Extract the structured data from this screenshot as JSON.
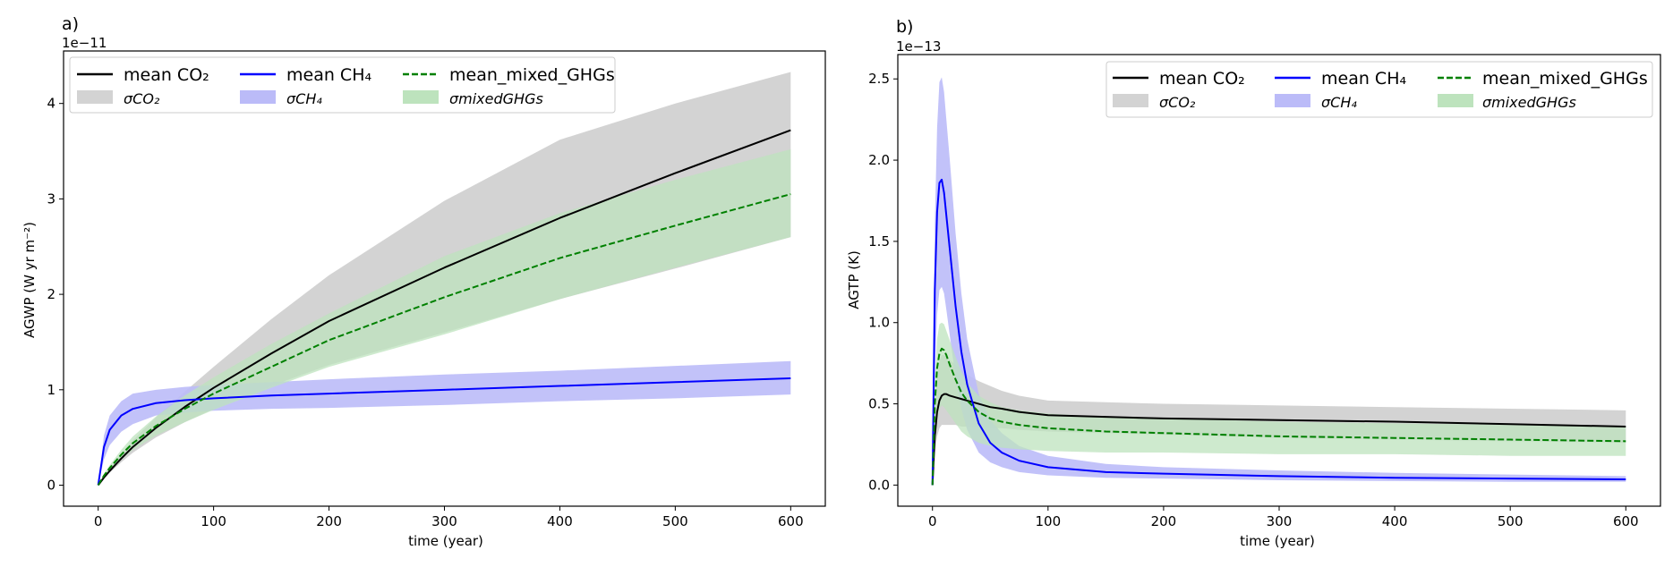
{
  "colors": {
    "co2": "#000000",
    "co2_band": "#d3d3d3",
    "ch4": "#0000ff",
    "ch4_band": "#bbbbf8",
    "mixed": "#008000",
    "mixed_band": "#bde3bd",
    "axes": "#000000"
  },
  "chart_data": [
    {
      "panel_label": "a)",
      "type": "line",
      "ylabel": "AGWP (W yr m⁻²)",
      "xlabel": "time (year)",
      "offset_text": "1e−11",
      "xlim": [
        -30,
        630
      ],
      "ylim": [
        -0.22,
        4.55
      ],
      "x_ticks": [
        0,
        100,
        200,
        300,
        400,
        500,
        600
      ],
      "y_ticks": [
        0,
        1,
        2,
        3,
        4
      ],
      "x_tick_labels": [
        "0",
        "100",
        "200",
        "300",
        "400",
        "500",
        "600"
      ],
      "y_tick_labels": [
        "0",
        "1",
        "2",
        "3",
        "4"
      ],
      "legend_position": "top-left",
      "legend": [
        [
          "mean CO₂",
          "mean CH₄",
          "mean_mixed_GHGs"
        ],
        [
          "σCO₂",
          "σCH₄",
          "σmixedGHGs"
        ]
      ],
      "x": [
        0,
        5,
        10,
        20,
        30,
        50,
        75,
        100,
        150,
        200,
        300,
        400,
        500,
        600
      ],
      "series": [
        {
          "name": "mean CO₂",
          "key": "co2",
          "mean": [
            0,
            0.08,
            0.15,
            0.28,
            0.4,
            0.6,
            0.82,
            1.02,
            1.38,
            1.72,
            2.28,
            2.8,
            3.27,
            3.72
          ],
          "lower": [
            0,
            0.07,
            0.13,
            0.24,
            0.34,
            0.5,
            0.66,
            0.8,
            1.04,
            1.26,
            1.6,
            1.95,
            2.27,
            2.6
          ],
          "upper": [
            0,
            0.09,
            0.17,
            0.33,
            0.47,
            0.71,
            0.98,
            1.24,
            1.74,
            2.2,
            2.98,
            3.62,
            4.0,
            4.33
          ]
        },
        {
          "name": "mean CH₄",
          "key": "ch4",
          "mean": [
            0,
            0.4,
            0.58,
            0.73,
            0.8,
            0.86,
            0.89,
            0.91,
            0.94,
            0.96,
            1.0,
            1.04,
            1.08,
            1.12
          ],
          "lower": [
            0,
            0.27,
            0.42,
            0.56,
            0.64,
            0.73,
            0.76,
            0.78,
            0.8,
            0.81,
            0.84,
            0.88,
            0.91,
            0.95
          ],
          "upper": [
            0,
            0.52,
            0.73,
            0.88,
            0.96,
            1.0,
            1.03,
            1.05,
            1.08,
            1.11,
            1.16,
            1.2,
            1.25,
            1.3
          ]
        },
        {
          "name": "mean_mixed_GHGs",
          "key": "mixed",
          "mean": [
            0,
            0.1,
            0.18,
            0.32,
            0.44,
            0.62,
            0.8,
            0.96,
            1.24,
            1.52,
            1.97,
            2.38,
            2.72,
            3.05
          ],
          "lower": [
            0,
            0.08,
            0.15,
            0.27,
            0.37,
            0.52,
            0.66,
            0.79,
            1.02,
            1.24,
            1.58,
            1.95,
            2.28,
            2.6
          ],
          "upper": [
            0,
            0.12,
            0.21,
            0.37,
            0.51,
            0.72,
            0.94,
            1.13,
            1.48,
            1.8,
            2.4,
            2.85,
            3.2,
            3.52
          ]
        }
      ]
    },
    {
      "panel_label": "b)",
      "type": "line",
      "ylabel": "AGTP (K)",
      "xlabel": "time (year)",
      "offset_text": "1e−13",
      "xlim": [
        -30,
        630
      ],
      "ylim": [
        -0.13,
        2.65
      ],
      "x_ticks": [
        0,
        100,
        200,
        300,
        400,
        500,
        600
      ],
      "y_ticks": [
        0.0,
        0.5,
        1.0,
        1.5,
        2.0,
        2.5
      ],
      "x_tick_labels": [
        "0",
        "100",
        "200",
        "300",
        "400",
        "500",
        "600"
      ],
      "y_tick_labels": [
        "0.0",
        "0.5",
        "1.0",
        "1.5",
        "2.0",
        "2.5"
      ],
      "legend_position": "top-right",
      "legend": [
        [
          "mean CO₂",
          "mean CH₄",
          "mean_mixed_GHGs"
        ],
        [
          "σCO₂",
          "σCH₄",
          "σmixedGHGs"
        ]
      ],
      "x": [
        0,
        2,
        4,
        6,
        8,
        10,
        12,
        15,
        20,
        25,
        30,
        40,
        50,
        60,
        75,
        100,
        150,
        200,
        300,
        400,
        500,
        600
      ],
      "series": [
        {
          "name": "mean CO₂",
          "key": "co2",
          "mean": [
            0,
            0.3,
            0.45,
            0.52,
            0.55,
            0.56,
            0.56,
            0.55,
            0.54,
            0.53,
            0.52,
            0.5,
            0.48,
            0.47,
            0.45,
            0.43,
            0.42,
            0.41,
            0.4,
            0.39,
            0.375,
            0.36
          ],
          "lower": [
            0,
            0.2,
            0.3,
            0.35,
            0.37,
            0.37,
            0.37,
            0.37,
            0.37,
            0.36,
            0.36,
            0.36,
            0.35,
            0.35,
            0.34,
            0.33,
            0.32,
            0.31,
            0.29,
            0.28,
            0.27,
            0.26
          ],
          "upper": [
            0,
            0.45,
            0.65,
            0.76,
            0.8,
            0.8,
            0.79,
            0.77,
            0.74,
            0.71,
            0.68,
            0.64,
            0.61,
            0.58,
            0.55,
            0.52,
            0.51,
            0.5,
            0.49,
            0.48,
            0.47,
            0.46
          ]
        },
        {
          "name": "mean CH₄",
          "key": "ch4",
          "mean": [
            0,
            1.2,
            1.68,
            1.86,
            1.88,
            1.8,
            1.66,
            1.45,
            1.1,
            0.82,
            0.62,
            0.38,
            0.26,
            0.2,
            0.15,
            0.11,
            0.08,
            0.07,
            0.055,
            0.045,
            0.04,
            0.035
          ],
          "lower": [
            0,
            0.7,
            1.05,
            1.2,
            1.22,
            1.18,
            1.08,
            0.92,
            0.66,
            0.47,
            0.34,
            0.2,
            0.14,
            0.11,
            0.08,
            0.06,
            0.045,
            0.04,
            0.03,
            0.025,
            0.02,
            0.02
          ],
          "upper": [
            0,
            1.6,
            2.2,
            2.48,
            2.51,
            2.42,
            2.25,
            2.0,
            1.55,
            1.18,
            0.9,
            0.56,
            0.4,
            0.32,
            0.24,
            0.18,
            0.13,
            0.11,
            0.09,
            0.075,
            0.065,
            0.055
          ]
        },
        {
          "name": "mean_mixed_GHGs",
          "key": "mixed",
          "mean": [
            0,
            0.5,
            0.72,
            0.81,
            0.84,
            0.83,
            0.8,
            0.74,
            0.65,
            0.57,
            0.52,
            0.45,
            0.41,
            0.39,
            0.37,
            0.35,
            0.33,
            0.32,
            0.3,
            0.29,
            0.28,
            0.27
          ],
          "lower": [
            0,
            0.3,
            0.42,
            0.47,
            0.49,
            0.48,
            0.46,
            0.43,
            0.38,
            0.33,
            0.3,
            0.26,
            0.24,
            0.23,
            0.22,
            0.21,
            0.2,
            0.2,
            0.19,
            0.19,
            0.18,
            0.18
          ],
          "upper": [
            0,
            0.65,
            0.9,
            0.99,
            1.0,
            0.99,
            0.95,
            0.89,
            0.79,
            0.7,
            0.63,
            0.55,
            0.51,
            0.48,
            0.46,
            0.44,
            0.42,
            0.41,
            0.39,
            0.38,
            0.37,
            0.36
          ]
        }
      ]
    }
  ]
}
